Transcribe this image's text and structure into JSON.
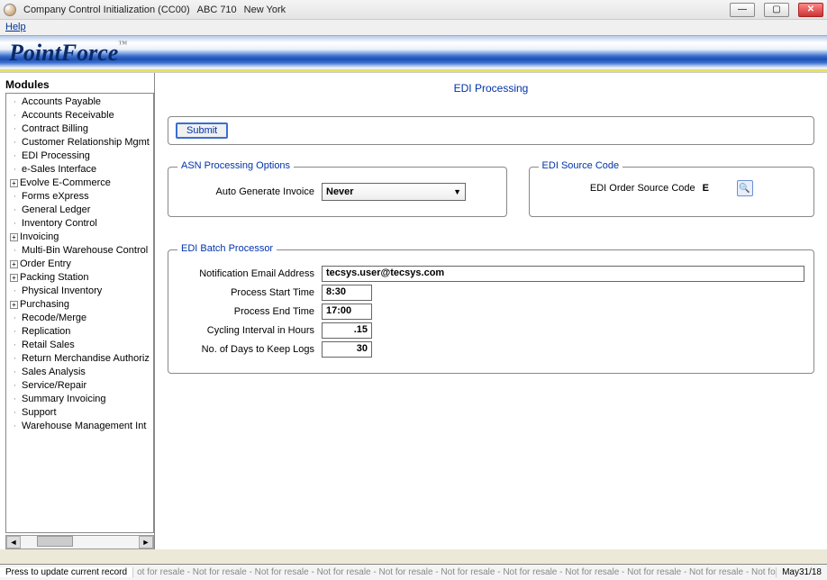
{
  "window": {
    "title": "Company Control Initialization (CC00)",
    "company": "ABC 710",
    "location": "New York"
  },
  "menu": {
    "help": "Help"
  },
  "brand": {
    "name": "PointForce",
    "tm": "™"
  },
  "sidebar": {
    "title": "Modules",
    "items": [
      {
        "label": "Accounts Payable",
        "exp": false
      },
      {
        "label": "Accounts Receivable",
        "exp": false
      },
      {
        "label": "Contract Billing",
        "exp": false
      },
      {
        "label": "Customer Relationship Mgmt",
        "exp": false
      },
      {
        "label": "EDI Processing",
        "exp": false
      },
      {
        "label": "e-Sales Interface",
        "exp": false
      },
      {
        "label": "Evolve E-Commerce",
        "exp": true
      },
      {
        "label": "Forms eXpress",
        "exp": false
      },
      {
        "label": "General Ledger",
        "exp": false
      },
      {
        "label": "Inventory Control",
        "exp": false
      },
      {
        "label": "Invoicing",
        "exp": true
      },
      {
        "label": "Multi-Bin Warehouse Control",
        "exp": false
      },
      {
        "label": "Order Entry",
        "exp": true
      },
      {
        "label": "Packing Station",
        "exp": true
      },
      {
        "label": "Physical Inventory",
        "exp": false
      },
      {
        "label": "Purchasing",
        "exp": true
      },
      {
        "label": "Recode/Merge",
        "exp": false
      },
      {
        "label": "Replication",
        "exp": false
      },
      {
        "label": "Retail Sales",
        "exp": false
      },
      {
        "label": "Return Merchandise Authoriz",
        "exp": false
      },
      {
        "label": "Sales Analysis",
        "exp": false
      },
      {
        "label": "Service/Repair",
        "exp": false
      },
      {
        "label": "Summary Invoicing",
        "exp": false
      },
      {
        "label": "Support",
        "exp": false
      },
      {
        "label": "Warehouse Management Int",
        "exp": false
      }
    ]
  },
  "page": {
    "title": "EDI Processing",
    "submit": "Submit",
    "asn": {
      "legend": "ASN Processing Options",
      "auto_invoice_label": "Auto Generate Invoice",
      "auto_invoice_value": "Never"
    },
    "src": {
      "legend": "EDI Source Code",
      "label": "EDI Order Source Code",
      "value": "E"
    },
    "batch": {
      "legend": "EDI Batch Processor",
      "email_label": "Notification Email Address",
      "email_value": "tecsys.user@tecsys.com",
      "start_label": "Process Start Time",
      "start_value": "8:30",
      "end_label": "Process End Time",
      "end_value": "17:00",
      "interval_label": "Cycling Interval in Hours",
      "interval_value": ".15",
      "days_label": "No. of Days to Keep Logs",
      "days_value": "30"
    }
  },
  "status": {
    "left": "Press to update current record",
    "mid": "ot for resale - Not for resale - Not for resale - Not for resale - Not for resale - Not for resale - Not for resale - Not for resale - Not for resale - Not for resale - Not for res",
    "date": "May31/18"
  },
  "colors": {
    "accent": "#0033aa",
    "border": "#888888",
    "brand_dark": "#0a2a6a"
  }
}
